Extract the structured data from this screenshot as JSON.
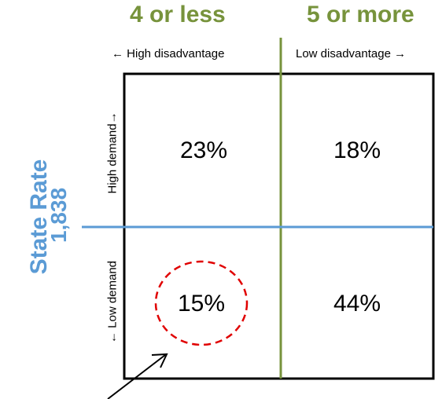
{
  "columns": {
    "left_heading": "4 or less",
    "right_heading": "5 or more",
    "left_note": "← High disadvantage",
    "right_note": "Low disadvantage →"
  },
  "rows": {
    "top_note": "High demand→",
    "bottom_note": "← Low demand"
  },
  "state_rate": {
    "label": "State Rate",
    "value": "1,838"
  },
  "cells": {
    "top_left": "23%",
    "top_right": "18%",
    "bottom_left": "15%",
    "bottom_right": "44%"
  },
  "colors": {
    "green": "#77933c",
    "blue": "#5b9bd5",
    "red": "#e00000",
    "black": "#000000"
  }
}
